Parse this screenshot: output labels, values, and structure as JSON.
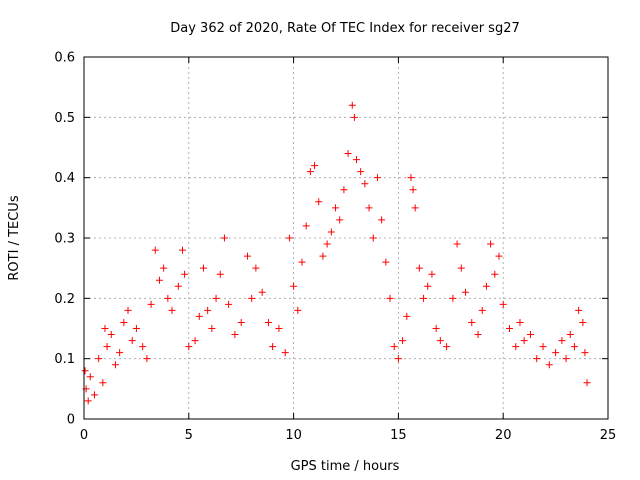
{
  "chart_data": {
    "type": "scatter",
    "title": "Day 362 of 2020, Rate Of TEC Index for receiver sg27",
    "xlabel": "GPS time / hours",
    "ylabel": "ROTI / TECUs",
    "xlim": [
      0,
      25
    ],
    "ylim": [
      0,
      0.6
    ],
    "x_ticks": [
      0,
      5,
      10,
      15,
      20,
      25
    ],
    "y_ticks": [
      0,
      0.1,
      0.2,
      0.3,
      0.4,
      0.5,
      0.6
    ],
    "x_tick_labels": [
      "0",
      "5",
      "10",
      "15",
      "20",
      "25"
    ],
    "y_tick_labels": [
      "0",
      "0.1",
      "0.2",
      "0.3",
      "0.4",
      "0.5",
      "0.6"
    ],
    "grid": true,
    "marker": "plus",
    "color": "#ff0000",
    "series": [
      {
        "name": "ROTI",
        "points": [
          [
            0.05,
            0.08
          ],
          [
            0.1,
            0.05
          ],
          [
            0.2,
            0.03
          ],
          [
            0.3,
            0.07
          ],
          [
            0.5,
            0.04
          ],
          [
            0.7,
            0.1
          ],
          [
            0.9,
            0.06
          ],
          [
            1.0,
            0.15
          ],
          [
            1.1,
            0.12
          ],
          [
            1.3,
            0.14
          ],
          [
            1.5,
            0.09
          ],
          [
            1.7,
            0.11
          ],
          [
            1.9,
            0.16
          ],
          [
            2.1,
            0.18
          ],
          [
            2.3,
            0.13
          ],
          [
            2.5,
            0.15
          ],
          [
            2.8,
            0.12
          ],
          [
            3.0,
            0.1
          ],
          [
            3.2,
            0.19
          ],
          [
            3.4,
            0.28
          ],
          [
            3.6,
            0.23
          ],
          [
            3.8,
            0.25
          ],
          [
            4.0,
            0.2
          ],
          [
            4.2,
            0.18
          ],
          [
            4.5,
            0.22
          ],
          [
            4.7,
            0.28
          ],
          [
            4.8,
            0.24
          ],
          [
            5.0,
            0.12
          ],
          [
            5.3,
            0.13
          ],
          [
            5.5,
            0.17
          ],
          [
            5.7,
            0.25
          ],
          [
            5.9,
            0.18
          ],
          [
            6.1,
            0.15
          ],
          [
            6.3,
            0.2
          ],
          [
            6.5,
            0.24
          ],
          [
            6.7,
            0.3
          ],
          [
            6.9,
            0.19
          ],
          [
            7.2,
            0.14
          ],
          [
            7.5,
            0.16
          ],
          [
            7.8,
            0.27
          ],
          [
            8.0,
            0.2
          ],
          [
            8.2,
            0.25
          ],
          [
            8.5,
            0.21
          ],
          [
            8.8,
            0.16
          ],
          [
            9.0,
            0.12
          ],
          [
            9.3,
            0.15
          ],
          [
            9.6,
            0.11
          ],
          [
            9.8,
            0.3
          ],
          [
            10.0,
            0.22
          ],
          [
            10.2,
            0.18
          ],
          [
            10.4,
            0.26
          ],
          [
            10.6,
            0.32
          ],
          [
            10.8,
            0.41
          ],
          [
            11.0,
            0.42
          ],
          [
            11.2,
            0.36
          ],
          [
            11.4,
            0.27
          ],
          [
            11.6,
            0.29
          ],
          [
            11.8,
            0.31
          ],
          [
            12.0,
            0.35
          ],
          [
            12.2,
            0.33
          ],
          [
            12.4,
            0.38
          ],
          [
            12.6,
            0.44
          ],
          [
            12.8,
            0.52
          ],
          [
            12.9,
            0.5
          ],
          [
            13.0,
            0.43
          ],
          [
            13.2,
            0.41
          ],
          [
            13.4,
            0.39
          ],
          [
            13.6,
            0.35
          ],
          [
            13.8,
            0.3
          ],
          [
            14.0,
            0.4
          ],
          [
            14.2,
            0.33
          ],
          [
            14.4,
            0.26
          ],
          [
            14.6,
            0.2
          ],
          [
            14.8,
            0.12
          ],
          [
            15.0,
            0.1
          ],
          [
            15.2,
            0.13
          ],
          [
            15.4,
            0.17
          ],
          [
            15.6,
            0.4
          ],
          [
            15.7,
            0.38
          ],
          [
            15.8,
            0.35
          ],
          [
            16.0,
            0.25
          ],
          [
            16.2,
            0.2
          ],
          [
            16.4,
            0.22
          ],
          [
            16.6,
            0.24
          ],
          [
            16.8,
            0.15
          ],
          [
            17.0,
            0.13
          ],
          [
            17.3,
            0.12
          ],
          [
            17.6,
            0.2
          ],
          [
            17.8,
            0.29
          ],
          [
            18.0,
            0.25
          ],
          [
            18.2,
            0.21
          ],
          [
            18.5,
            0.16
          ],
          [
            18.8,
            0.14
          ],
          [
            19.0,
            0.18
          ],
          [
            19.2,
            0.22
          ],
          [
            19.4,
            0.29
          ],
          [
            19.6,
            0.24
          ],
          [
            19.8,
            0.27
          ],
          [
            20.0,
            0.19
          ],
          [
            20.3,
            0.15
          ],
          [
            20.6,
            0.12
          ],
          [
            20.8,
            0.16
          ],
          [
            21.0,
            0.13
          ],
          [
            21.3,
            0.14
          ],
          [
            21.6,
            0.1
          ],
          [
            21.9,
            0.12
          ],
          [
            22.2,
            0.09
          ],
          [
            22.5,
            0.11
          ],
          [
            22.8,
            0.13
          ],
          [
            23.0,
            0.1
          ],
          [
            23.2,
            0.14
          ],
          [
            23.4,
            0.12
          ],
          [
            23.6,
            0.18
          ],
          [
            23.8,
            0.16
          ],
          [
            23.9,
            0.11
          ],
          [
            24.0,
            0.06
          ]
        ]
      }
    ]
  }
}
